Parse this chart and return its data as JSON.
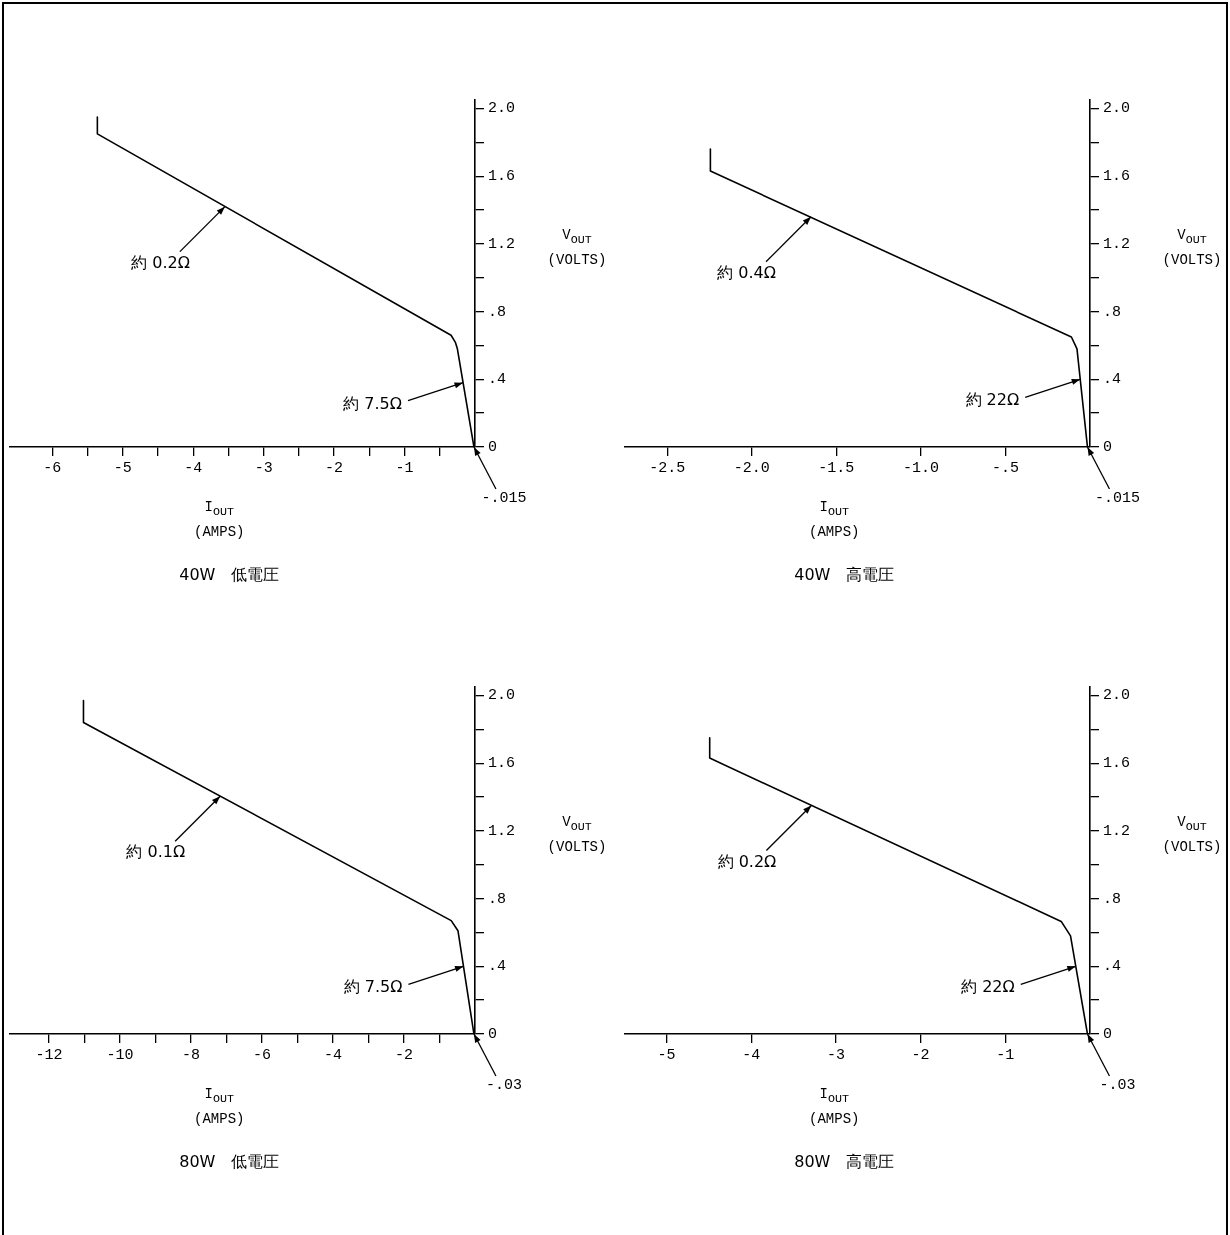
{
  "chart_data": [
    {
      "type": "line",
      "title": "40W　低電圧",
      "xlabel": "I$_{OUT}$ (AMPS)",
      "ylabel": "V$_{OUT}$ (VOLTS)",
      "color": "#000000",
      "marker": "none",
      "legend": false,
      "x": [
        -5.36,
        -5.36,
        -0.34,
        -0.28,
        -0.25,
        -0.015
      ],
      "values": [
        1.95,
        1.85,
        0.66,
        0.62,
        0.58,
        0
      ],
      "xlim": [
        -6.6,
        0
      ],
      "xticks": [
        -6,
        {
          "value": -5.5,
          "label": null
        },
        -5,
        {
          "value": -4.5,
          "label": null
        },
        -4,
        {
          "value": -3.5,
          "label": null
        },
        -3,
        {
          "value": -2.5,
          "label": null
        },
        -2,
        {
          "value": -1.5,
          "label": null
        },
        -1,
        {
          "value": -0.5,
          "label": null
        }
      ],
      "ylim": [
        0,
        2.05
      ],
      "yticks": [
        0,
        {
          "value": 0.2,
          "label": null
        },
        {
          "value": 0.4,
          "label": ".4"
        },
        {
          "value": 0.6,
          "label": null
        },
        {
          "value": 0.8,
          "label": ".8"
        },
        {
          "value": 1,
          "label": null
        },
        1.2,
        {
          "value": 1.4,
          "label": null
        },
        1.6,
        {
          "value": 1.8,
          "label": null
        },
        {
          "value": 2,
          "label": "2.0"
        }
      ],
      "annotations": [
        {
          "text": "約 0.2Ω",
          "x": -3.55,
          "y": 1.42
        },
        {
          "text": "約 7.5Ω",
          "x": -0.17,
          "y": 0.38
        },
        {
          "text": "-.015",
          "x": -0.015,
          "y": 0
        }
      ]
    },
    {
      "type": "line",
      "title": "40W　高電圧",
      "xlabel": "I$_{OUT}$ (AMPS)",
      "ylabel": "V$_{OUT}$ (VOLTS)",
      "color": "#000000",
      "marker": "none",
      "legend": false,
      "x": [
        -2.245,
        -2.245,
        -0.11,
        -0.077,
        -0.015
      ],
      "values": [
        1.76,
        1.63,
        0.65,
        0.58,
        0
      ],
      "xlim": [
        -2.75,
        0
      ],
      "xticks": [
        {
          "value": -2.5,
          "label": "-2.5"
        },
        {
          "value": -2,
          "label": "-2.0"
        },
        {
          "value": -1.5,
          "label": "-1.5"
        },
        {
          "value": -1,
          "label": "-1.0"
        },
        {
          "value": -0.5,
          "label": "-.5"
        }
      ],
      "ylim": [
        0,
        2.05
      ],
      "yticks": [
        0,
        {
          "value": 0.2,
          "label": null
        },
        {
          "value": 0.4,
          "label": ".4"
        },
        {
          "value": 0.6,
          "label": null
        },
        {
          "value": 0.8,
          "label": ".8"
        },
        {
          "value": 1,
          "label": null
        },
        1.2,
        {
          "value": 1.4,
          "label": null
        },
        1.6,
        {
          "value": 1.8,
          "label": null
        },
        {
          "value": 2,
          "label": "2.0"
        }
      ],
      "annotations": [
        {
          "text": "約 0.4Ω",
          "x": -1.65,
          "y": 1.36
        },
        {
          "text": "約 22Ω",
          "x": -0.058,
          "y": 0.4
        },
        {
          "text": "-.015",
          "x": -0.015,
          "y": 0
        }
      ]
    },
    {
      "type": "line",
      "title": "80W　低電圧",
      "xlabel": "I$_{OUT}$ (AMPS)",
      "ylabel": "V$_{OUT}$ (VOLTS)",
      "color": "#000000",
      "marker": "none",
      "legend": false,
      "x": [
        -11.03,
        -11.03,
        -0.67,
        -0.48,
        -0.03
      ],
      "values": [
        1.97,
        1.84,
        0.67,
        0.61,
        0
      ],
      "xlim": [
        -13.1,
        0
      ],
      "xticks": [
        -12,
        {
          "value": -11,
          "label": null
        },
        -10,
        {
          "value": -9,
          "label": null
        },
        -8,
        {
          "value": -7,
          "label": null
        },
        -6,
        {
          "value": -5,
          "label": null
        },
        -4,
        {
          "value": -3,
          "label": null
        },
        -2,
        {
          "value": -1,
          "label": null
        }
      ],
      "ylim": [
        0,
        2.05
      ],
      "yticks": [
        0,
        {
          "value": 0.2,
          "label": null
        },
        {
          "value": 0.4,
          "label": ".4"
        },
        {
          "value": 0.6,
          "label": null
        },
        {
          "value": 0.8,
          "label": ".8"
        },
        {
          "value": 1,
          "label": null
        },
        1.2,
        {
          "value": 1.4,
          "label": null
        },
        1.6,
        {
          "value": 1.8,
          "label": null
        },
        {
          "value": 2,
          "label": "2.0"
        }
      ],
      "annotations": [
        {
          "text": "約 0.1Ω",
          "x": -7.18,
          "y": 1.405
        },
        {
          "text": "約 7.5Ω",
          "x": -0.325,
          "y": 0.4
        },
        {
          "text": "-.03",
          "x": -0.03,
          "y": 0
        }
      ]
    },
    {
      "type": "line",
      "title": "80W　高電圧",
      "xlabel": "I$_{OUT}$ (AMPS)",
      "ylabel": "V$_{OUT}$ (VOLTS)",
      "color": "#000000",
      "marker": "none",
      "legend": false,
      "x": [
        -4.49,
        -4.49,
        -0.34,
        -0.23,
        -0.03
      ],
      "values": [
        1.75,
        1.63,
        0.665,
        0.58,
        0
      ],
      "xlim": [
        -5.49,
        0
      ],
      "xticks": [
        -5,
        -4,
        -3,
        -2,
        -1
      ],
      "ylim": [
        0,
        2.05
      ],
      "yticks": [
        0,
        {
          "value": 0.2,
          "label": null
        },
        {
          "value": 0.4,
          "label": ".4"
        },
        {
          "value": 0.6,
          "label": null
        },
        {
          "value": 0.8,
          "label": ".8"
        },
        {
          "value": 1,
          "label": null
        },
        1.2,
        {
          "value": 1.4,
          "label": null
        },
        1.6,
        {
          "value": 1.8,
          "label": null
        },
        {
          "value": 2,
          "label": "2.0"
        }
      ],
      "annotations": [
        {
          "text": "約 0.2Ω",
          "x": -3.29,
          "y": 1.35
        },
        {
          "text": "約 22Ω",
          "x": -0.168,
          "y": 0.4
        },
        {
          "text": "-.03",
          "x": -0.03,
          "y": 0
        }
      ]
    }
  ]
}
